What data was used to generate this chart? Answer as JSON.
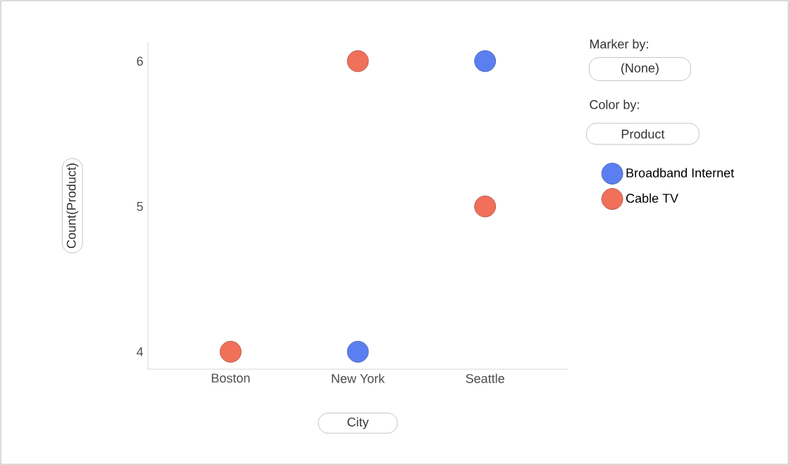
{
  "chart_data": {
    "type": "scatter",
    "xlabel": "City",
    "ylabel": "Count(Product)",
    "categories": [
      "Boston",
      "New York",
      "Seattle"
    ],
    "series": [
      {
        "name": "Broadband Internet",
        "color": "#5b7ff0",
        "values": [
          null,
          4,
          6
        ]
      },
      {
        "name": "Cable TV",
        "color": "#f0705a",
        "values": [
          4,
          6,
          5
        ]
      }
    ],
    "ylim": [
      3.88,
      6.13
    ],
    "yticks": [
      4,
      5,
      6
    ],
    "grid": false,
    "legend": "right",
    "marker": "circle",
    "annotations": [
      "Marker by:",
      "(None)",
      "Color by:",
      "Product"
    ]
  }
}
